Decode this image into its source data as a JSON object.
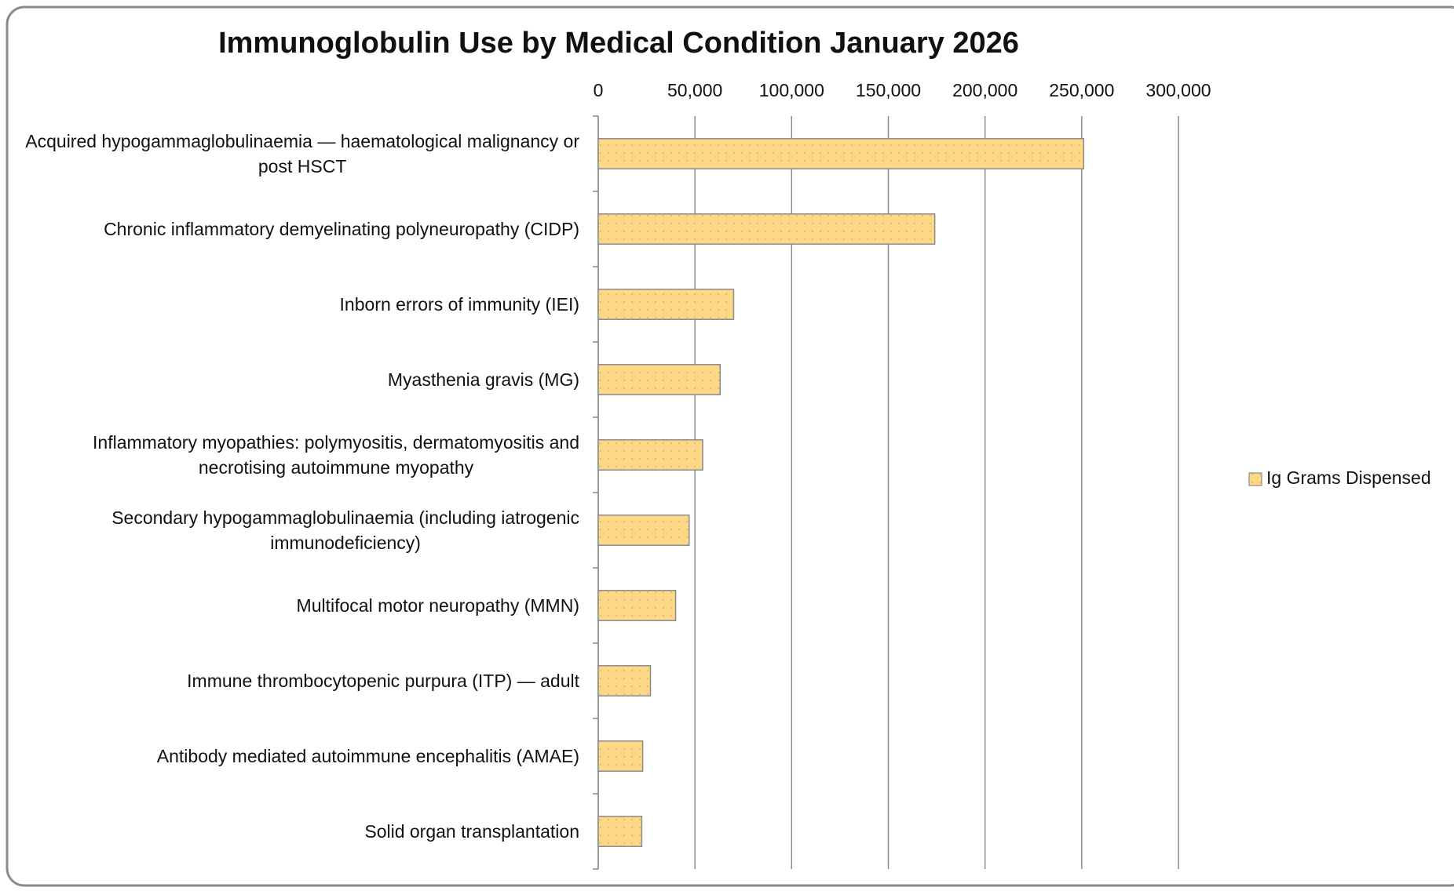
{
  "chart_data": {
    "type": "bar",
    "orientation": "horizontal",
    "title": "Immunoglobulin Use by Medical Condition January 2026",
    "categories": [
      "Acquired hypogammaglobulinaemia — haematological malignancy or post HSCT",
      "Chronic inflammatory demyelinating polyneuropathy (CIDP)",
      "Inborn errors of immunity (IEI)",
      "Myasthenia gravis (MG)",
      "Inflammatory myopathies: polymyositis, dermatomyositis and necrotising autoimmune myopathy",
      "Secondary hypogammaglobulinaemia (including iatrogenic immunodeficiency)",
      "Multifocal motor neuropathy (MMN)",
      "Immune thrombocytopenic purpura (ITP) — adult",
      "Antibody mediated autoimmune encephalitis (AMAE)",
      "Solid organ transplantation"
    ],
    "series": [
      {
        "name": "Ig Grams Dispensed",
        "color": "#fdd886",
        "values": [
          251000,
          174000,
          70000,
          63000,
          54000,
          47000,
          40000,
          27000,
          23000,
          22500
        ]
      }
    ],
    "xlim": [
      0,
      300000
    ],
    "xticks": [
      0,
      {
        "value": 50000,
        "label": "50,000"
      },
      {
        "value": 100000,
        "label": "100,000"
      },
      {
        "value": 150000,
        "label": "150,000"
      },
      {
        "value": 200000,
        "label": "200,000"
      },
      {
        "value": 250000,
        "label": "250,000"
      },
      {
        "value": 300000,
        "label": "300,000"
      }
    ],
    "grid": true,
    "legend": "right"
  }
}
